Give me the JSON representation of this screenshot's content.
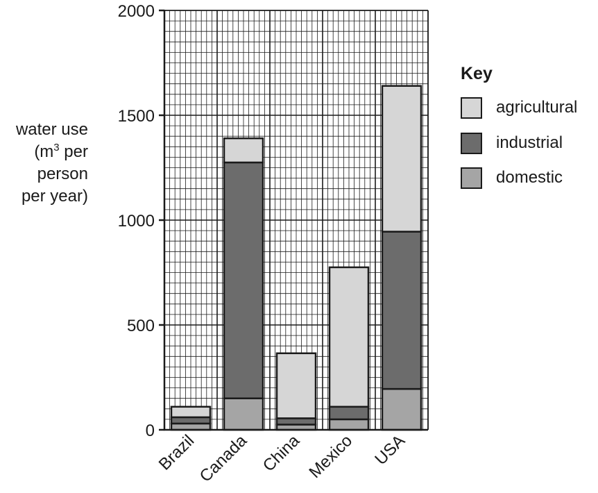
{
  "chart_data": {
    "type": "bar",
    "stacked": true,
    "categories": [
      "Brazil",
      "Canada",
      "China",
      "Mexico",
      "USA"
    ],
    "series": [
      {
        "name": "domestic",
        "values": [
          30,
          150,
          25,
          50,
          195
        ],
        "color": "#a5a5a5"
      },
      {
        "name": "industrial",
        "values": [
          30,
          1125,
          30,
          60,
          750
        ],
        "color": "#6c6c6c"
      },
      {
        "name": "agricultural",
        "values": [
          50,
          115,
          310,
          665,
          695
        ],
        "color": "#d6d6d6"
      }
    ],
    "ylabel": {
      "line1": "water use",
      "line2_pre": "(m",
      "line2_sup": "3",
      "line2_post": " per",
      "line3": "person",
      "line4": "per year)"
    },
    "yticks": [
      "0",
      "500",
      "1000",
      "1500",
      "2000"
    ],
    "ylim": [
      0,
      2000
    ],
    "grid": true,
    "legend": {
      "title": "Key",
      "position": "right"
    }
  }
}
